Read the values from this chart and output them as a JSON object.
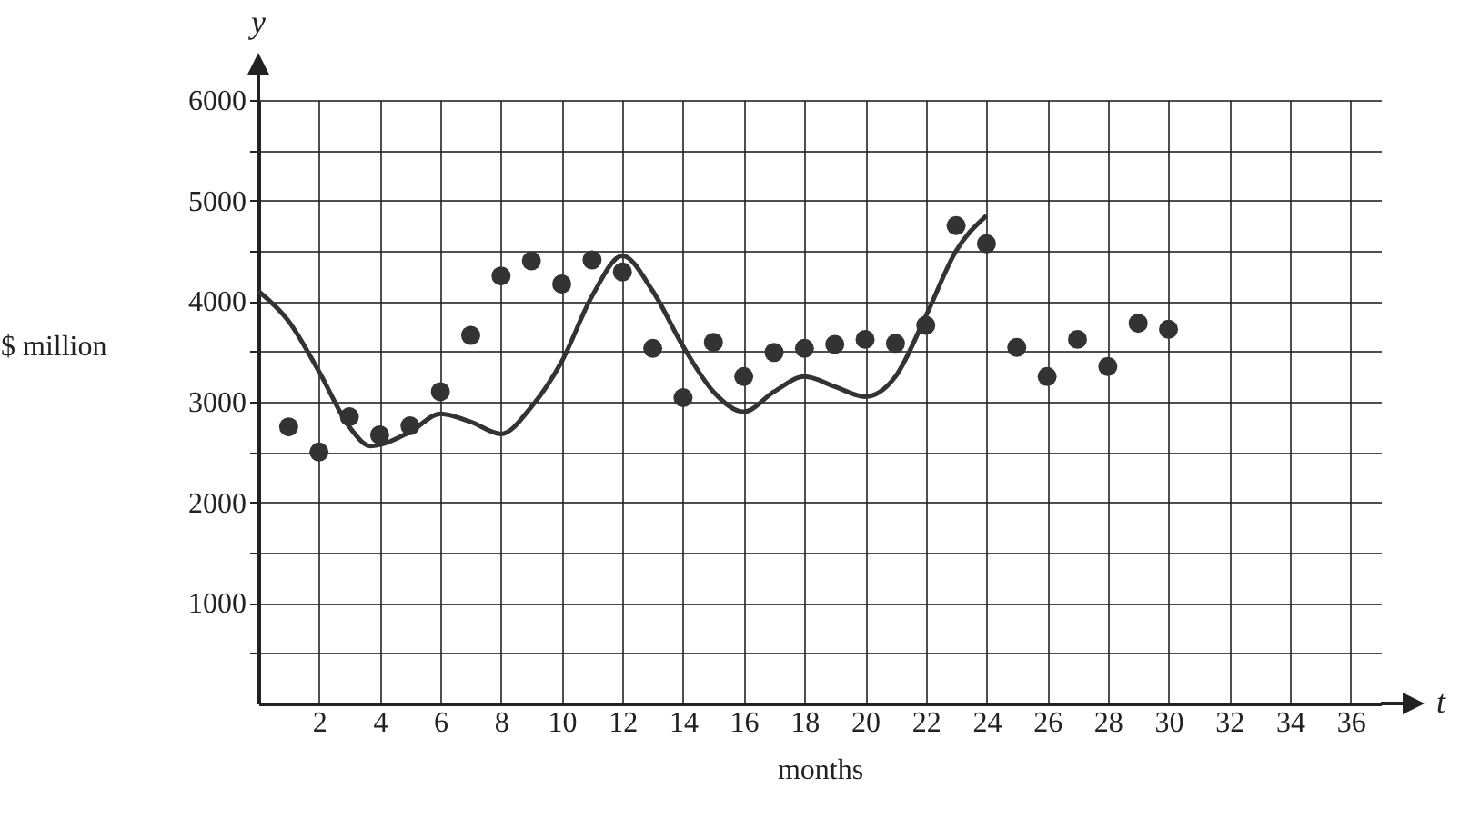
{
  "chart_data": {
    "type": "scatter",
    "xlabel": "months",
    "ylabel": "$ million",
    "annotations": [
      "y",
      "t"
    ],
    "xlim": [
      0,
      37
    ],
    "ylim": [
      0,
      6000
    ],
    "xticks": [
      2,
      4,
      6,
      8,
      10,
      12,
      14,
      16,
      18,
      20,
      22,
      24,
      26,
      28,
      30,
      32,
      34,
      36
    ],
    "yticks": [
      {
        "value": 500,
        "label": null
      },
      1000,
      {
        "value": 1500,
        "label": null
      },
      2000,
      {
        "value": 2500,
        "label": null
      },
      3000,
      {
        "value": 3500,
        "label": null
      },
      4000,
      {
        "value": 4500,
        "label": null
      },
      5000,
      {
        "value": 5500,
        "label": null
      },
      6000
    ],
    "grid": true,
    "line_style": "solid",
    "series": [
      {
        "type": "scatter",
        "marker": "circle",
        "color": "#333333",
        "x": [
          1,
          2,
          3,
          4,
          5,
          6,
          7,
          8,
          9,
          10,
          11,
          12,
          13,
          14,
          15,
          16,
          17,
          18,
          19,
          20,
          21,
          22,
          23,
          24,
          25,
          26,
          27,
          28,
          29,
          30
        ],
        "values": [
          2750,
          2500,
          2850,
          2670,
          2760,
          3100,
          3660,
          4250,
          4400,
          4170,
          4410,
          4290,
          3530,
          3040,
          3590,
          3250,
          3490,
          3530,
          3570,
          3620,
          3580,
          3760,
          4750,
          4570,
          3540,
          3250,
          3620,
          3350,
          3780,
          3720
        ]
      },
      {
        "type": "line",
        "marker": "none",
        "color": "#333333",
        "x": [
          0,
          1,
          2,
          3,
          3.7,
          5,
          6,
          7,
          8,
          9,
          10,
          11,
          12,
          13,
          14,
          15,
          16,
          17,
          18,
          19,
          20,
          21,
          22,
          23,
          24
        ],
        "values": [
          4100,
          3800,
          3300,
          2750,
          2560,
          2700,
          2880,
          2800,
          2680,
          2950,
          3400,
          4050,
          4450,
          4100,
          3550,
          3100,
          2900,
          3100,
          3250,
          3150,
          3050,
          3250,
          3850,
          4500,
          4850
        ]
      }
    ]
  }
}
